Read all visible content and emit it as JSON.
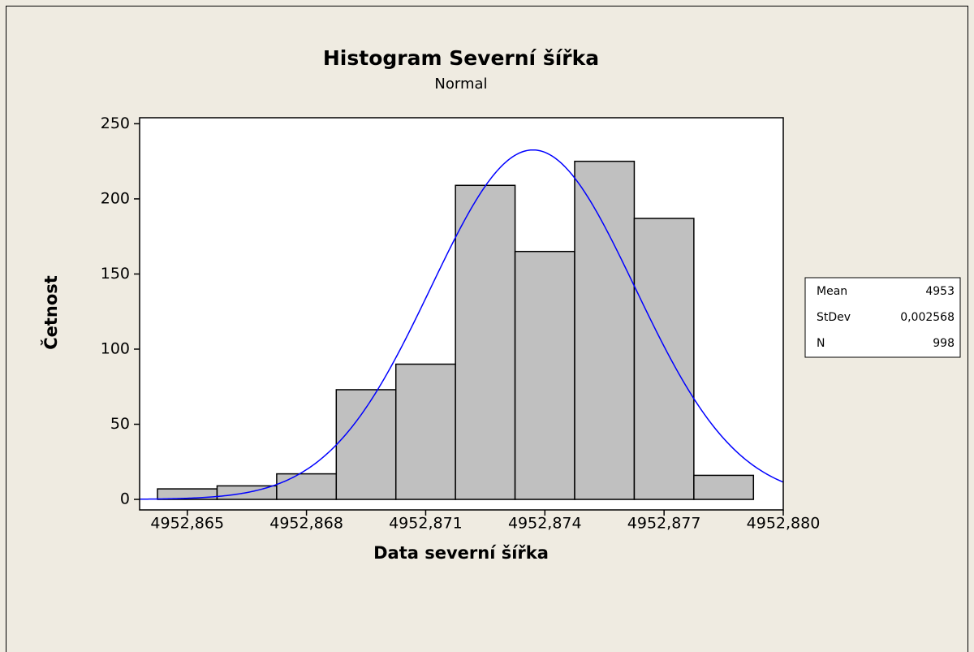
{
  "chart_data": {
    "type": "histogram",
    "title": "Histogram Severní šířka",
    "subtitle": "Normal",
    "xlabel": "Data severní šířka",
    "ylabel": "Četnost",
    "bins": [
      4952.86425,
      4952.86575,
      4952.86725,
      4952.86875,
      4952.87025,
      4952.87175,
      4952.87325,
      4952.87475,
      4952.87625,
      4952.87775,
      4952.87925
    ],
    "values": [
      7,
      9,
      17,
      73,
      90,
      209,
      165,
      225,
      187,
      16
    ],
    "color": "#c0c0c0",
    "curve_color": "#0000ff",
    "xlim": [
      4952.8638,
      4952.88
    ],
    "ylim": [
      -7,
      254
    ],
    "xticks": [
      {
        "value": 4952.865,
        "label": "4952,865"
      },
      {
        "value": 4952.868,
        "label": "4952,868"
      },
      {
        "value": 4952.871,
        "label": "4952,871"
      },
      {
        "value": 4952.874,
        "label": "4952,874"
      },
      {
        "value": 4952.877,
        "label": "4952,877"
      },
      {
        "value": 4952.88,
        "label": "4952,880"
      }
    ],
    "yticks": [
      0,
      50,
      100,
      150,
      200,
      250
    ],
    "stats": {
      "labels": [
        "Mean",
        "StDev",
        "N"
      ],
      "values": [
        4952.8737,
        0.002568,
        998
      ],
      "value_labels": [
        "4953",
        "0,002568",
        "998"
      ]
    }
  }
}
